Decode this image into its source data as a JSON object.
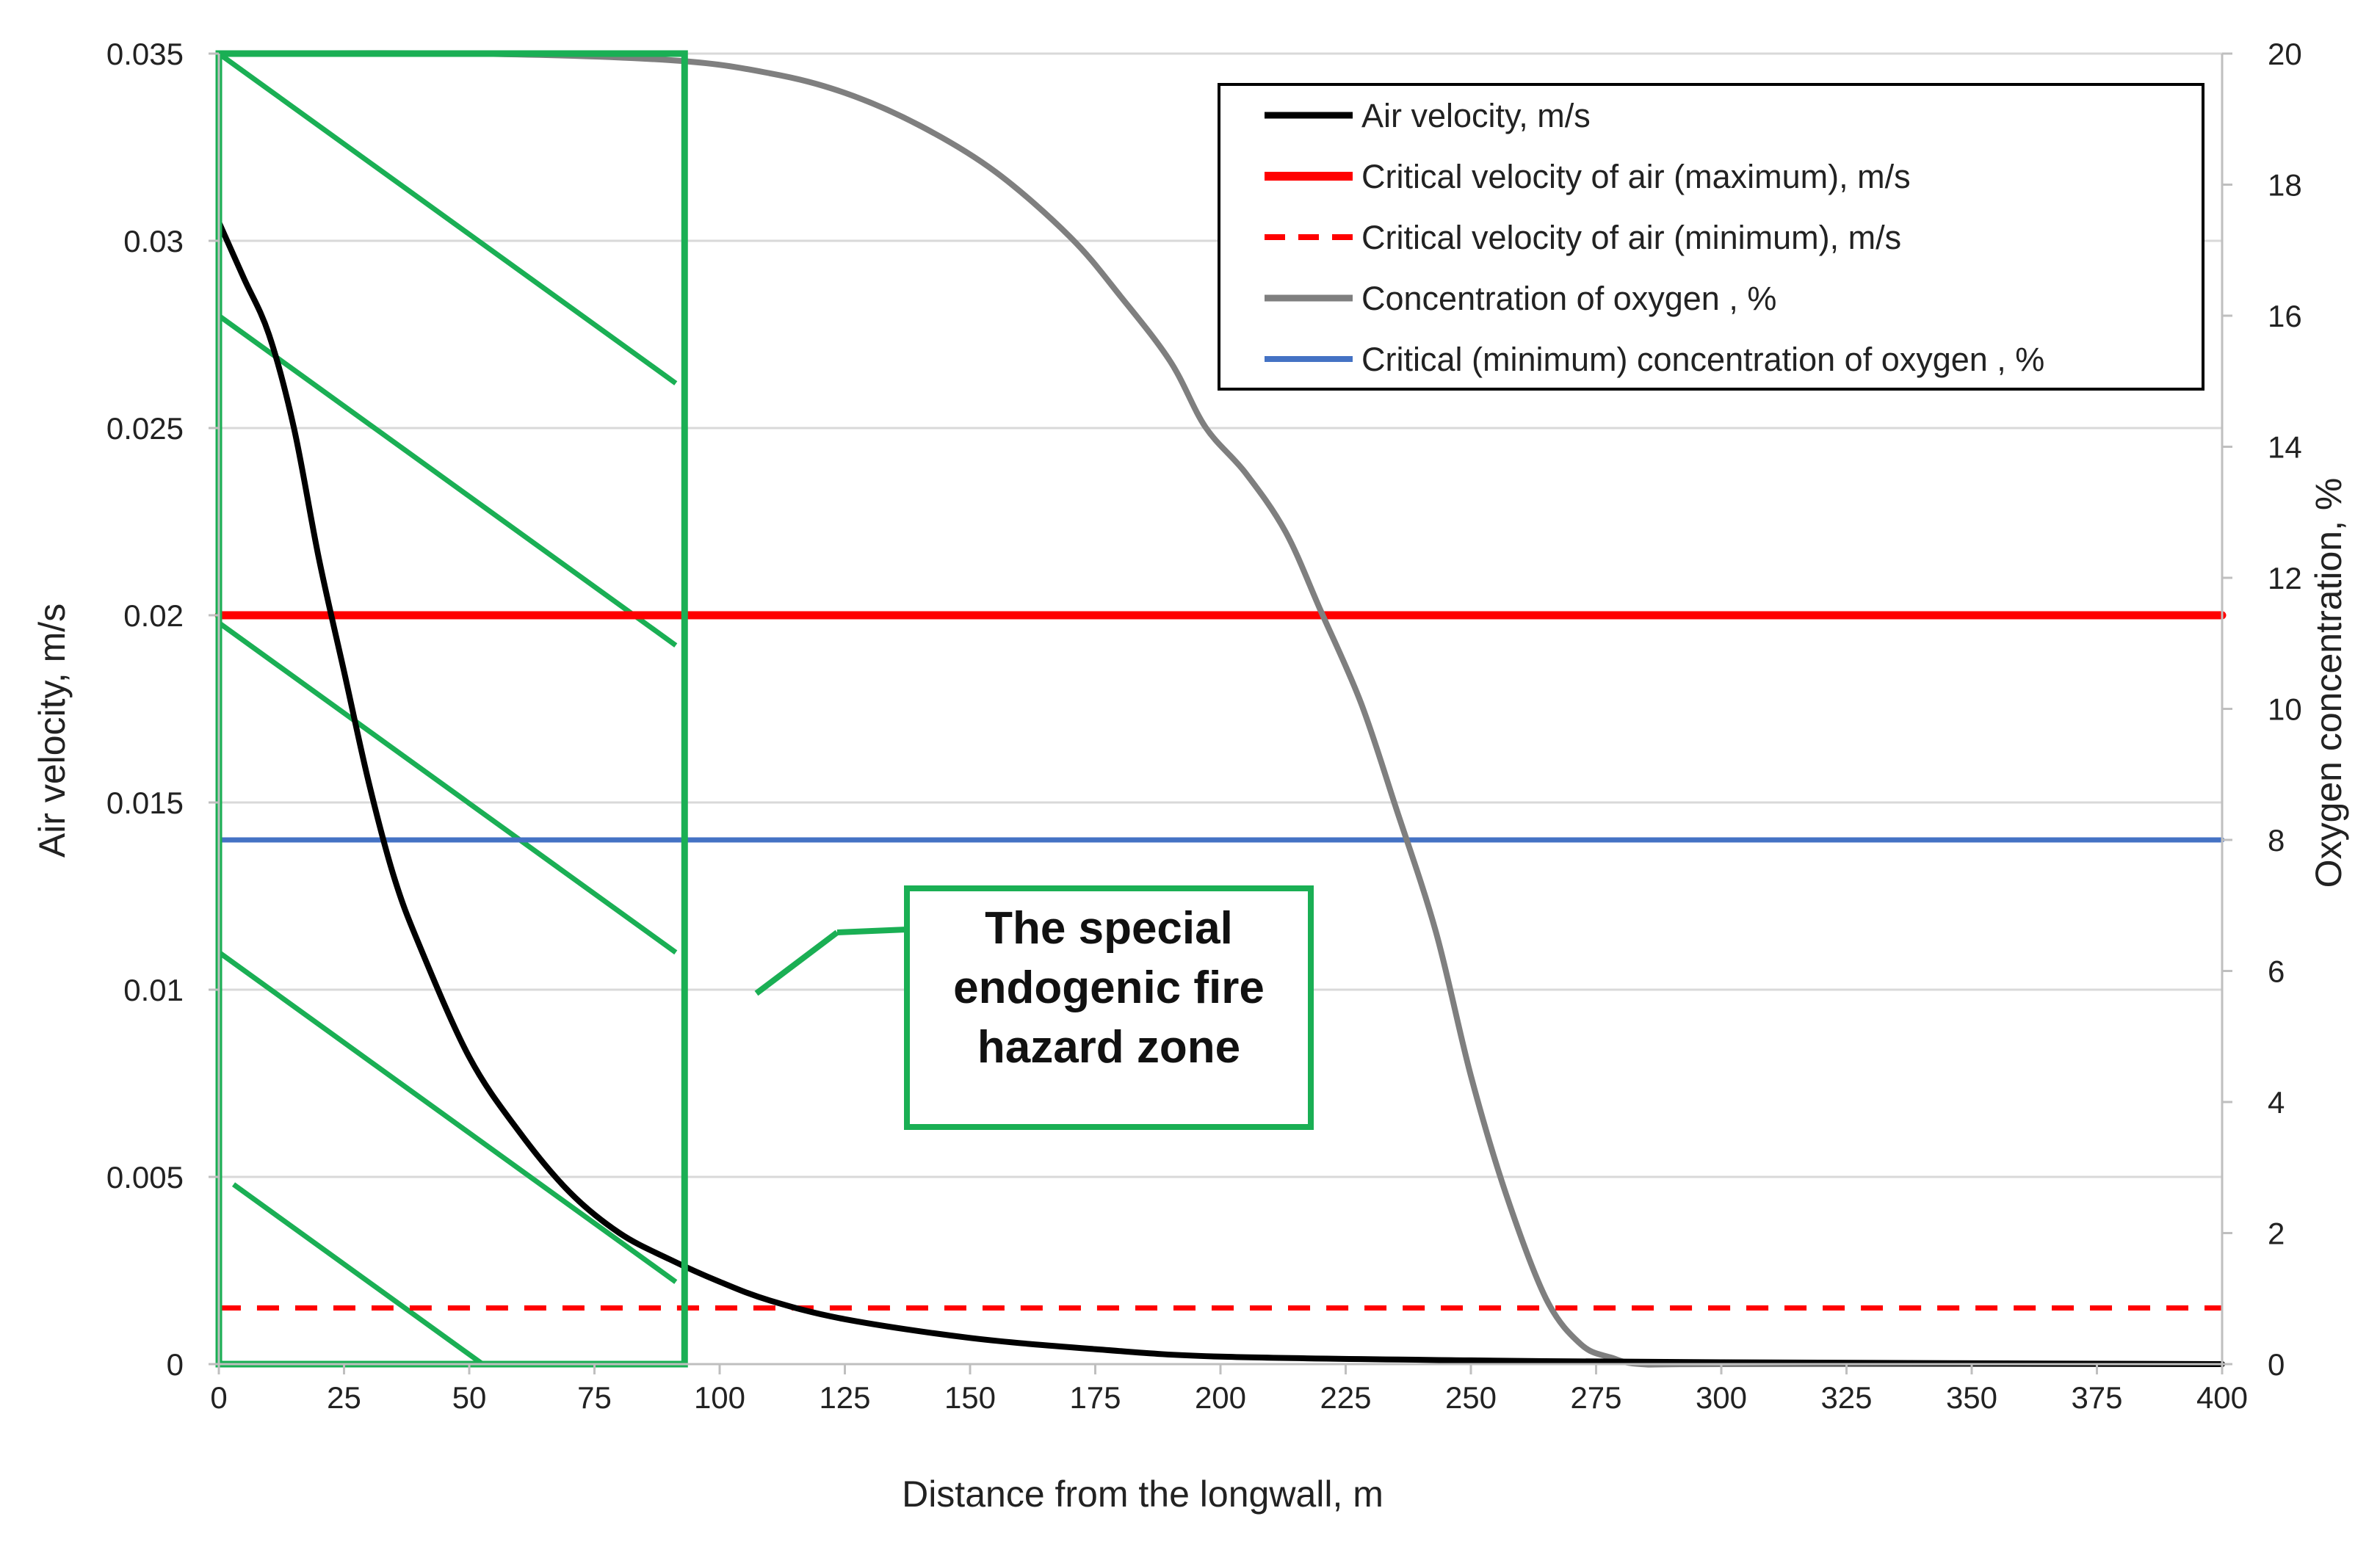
{
  "chart_data": {
    "type": "line",
    "title": "",
    "xlabel": "Distance from the longwall, m",
    "ylabel": "Air velocity, m/s",
    "y2label": "Oxygen concentration, %",
    "xlim": [
      0,
      400
    ],
    "ylim": [
      0,
      0.035
    ],
    "y2lim": [
      0,
      20
    ],
    "grid": true,
    "legend_position": "top-right",
    "x_ticks": [
      "0",
      "25",
      "50",
      "75",
      "100",
      "125",
      "150",
      "175",
      "200",
      "225",
      "250",
      "275",
      "300",
      "325",
      "350",
      "375",
      "400"
    ],
    "y_ticks": [
      "0",
      "0.005",
      "0.01",
      "0.015",
      "0.02",
      "0.025",
      "0.03",
      "0.035"
    ],
    "y2_ticks": [
      "0",
      "2",
      "4",
      "6",
      "8",
      "10",
      "12",
      "14",
      "16",
      "18",
      "20"
    ],
    "series": [
      {
        "name": "Air velocity, m/s",
        "axis": "left",
        "color": "#000000",
        "style": "solid",
        "x": [
          0,
          5,
          10,
          15,
          20,
          25,
          30,
          35,
          40,
          50,
          60,
          70,
          80,
          90,
          100,
          110,
          125,
          150,
          175,
          200,
          250,
          300,
          400
        ],
        "y": [
          0.0305,
          0.029,
          0.0275,
          0.025,
          0.0215,
          0.0185,
          0.0155,
          0.013,
          0.0112,
          0.0082,
          0.0062,
          0.0046,
          0.0035,
          0.0028,
          0.0022,
          0.0017,
          0.0012,
          0.0007,
          0.0004,
          0.0002,
          0.0001,
          5e-05,
          0.0
        ]
      },
      {
        "name": "Critical velocity of air (maximum), m/s",
        "axis": "left",
        "color": "#ff0000",
        "style": "solid",
        "x": [
          0,
          400
        ],
        "y": [
          0.02,
          0.02
        ]
      },
      {
        "name": "Critical velocity of air (minimum), m/s",
        "axis": "left",
        "color": "#ff0000",
        "style": "dashed",
        "x": [
          0,
          400
        ],
        "y": [
          0.0015,
          0.0015
        ]
      },
      {
        "name": "Concentration of oxygen , %",
        "axis": "right",
        "color": "#7f7f7f",
        "style": "solid",
        "x": [
          0,
          50,
          90,
          110,
          125,
          140,
          155,
          170,
          180,
          190,
          197,
          205,
          213,
          220,
          228,
          235,
          243,
          250,
          257,
          265,
          272,
          278,
          284,
          300,
          400
        ],
        "y": [
          20,
          20,
          19.9,
          19.7,
          19.4,
          18.9,
          18.2,
          17.2,
          16.3,
          15.3,
          14.3,
          13.6,
          12.7,
          11.5,
          10.1,
          8.5,
          6.6,
          4.4,
          2.6,
          1.0,
          0.3,
          0.1,
          0,
          0,
          0
        ]
      },
      {
        "name": "Critical (minimum) concentration of oxygen , %",
        "axis": "right",
        "color": "#4472c4",
        "style": "solid",
        "x": [
          0,
          400
        ],
        "y": [
          8,
          8
        ]
      }
    ],
    "annotations": [
      {
        "text": "The special endogenic fire hazard zone",
        "lines": [
          "The special",
          "endogenic fire",
          "hazard zone"
        ],
        "zone_x_range": [
          0,
          93
        ],
        "color": "#1aaf54"
      }
    ]
  }
}
